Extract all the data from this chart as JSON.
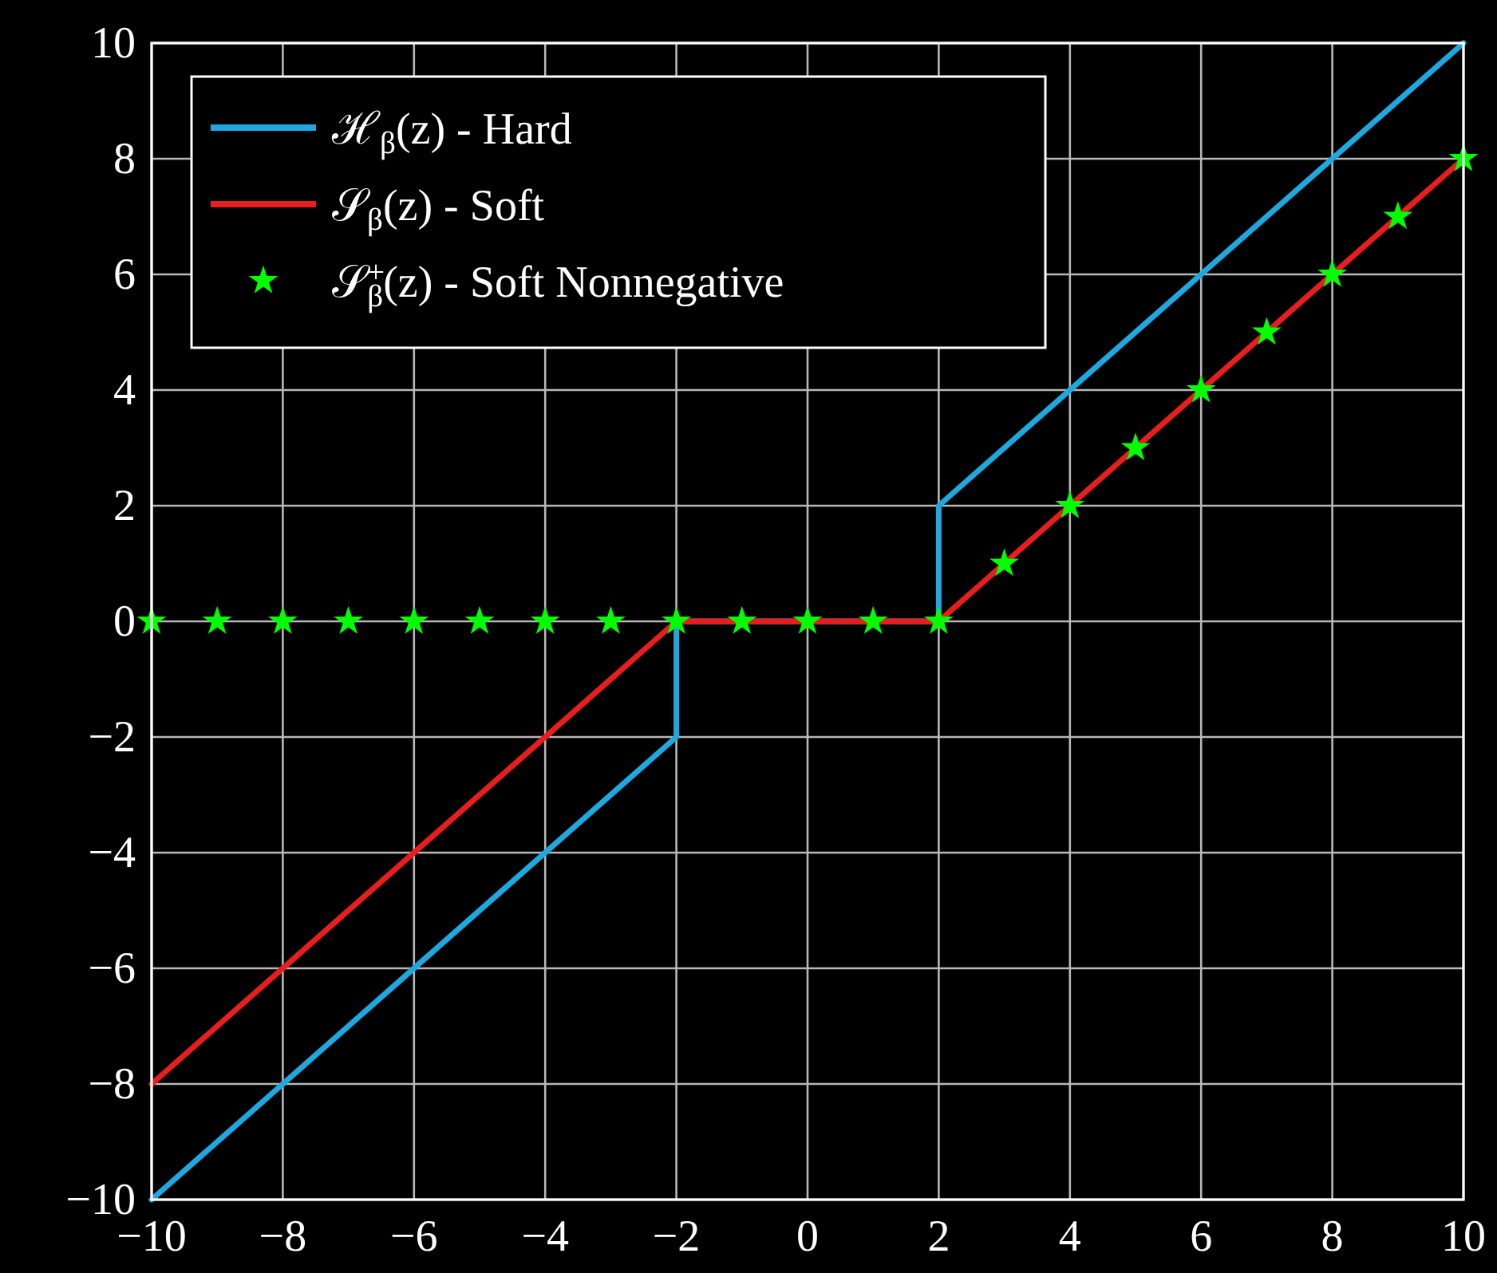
{
  "chart_data": {
    "type": "line",
    "xlim": [
      -10,
      10
    ],
    "ylim": [
      -10,
      10
    ],
    "xticks": [
      -10,
      -8,
      -6,
      -4,
      -2,
      0,
      2,
      4,
      6,
      8,
      10
    ],
    "yticks": [
      -10,
      -8,
      -6,
      -4,
      -2,
      0,
      2,
      4,
      6,
      8,
      10
    ],
    "grid": true,
    "legend": "top left",
    "series": [
      {
        "name": "ℋ$_{β}$(z) - Hard",
        "color": "#1ea8e0",
        "x": [
          -10,
          -2,
          -2,
          2,
          2,
          10
        ],
        "values": [
          -10,
          -2,
          0,
          0,
          2,
          10
        ]
      },
      {
        "name": "𝒮$_{β}$(z) - Soft",
        "color": "#e81e1e",
        "x": [
          -10,
          -2,
          2,
          10
        ],
        "values": [
          -8,
          0,
          0,
          8
        ]
      },
      {
        "name": "𝒮$^{+}$$_{β}$(z) - Soft Nonnegative",
        "type": "scatter",
        "marker": "star",
        "color": "#00ff00",
        "x": [
          -10,
          -9,
          -8,
          -7,
          -6,
          -5,
          -4,
          -3,
          -2,
          -1,
          0,
          1,
          2,
          3,
          4,
          5,
          6,
          7,
          8,
          9,
          10
        ],
        "values": [
          0,
          0,
          0,
          0,
          0,
          0,
          0,
          0,
          0,
          0,
          0,
          0,
          0,
          1,
          2,
          3,
          4,
          5,
          6,
          7,
          8
        ]
      }
    ]
  }
}
